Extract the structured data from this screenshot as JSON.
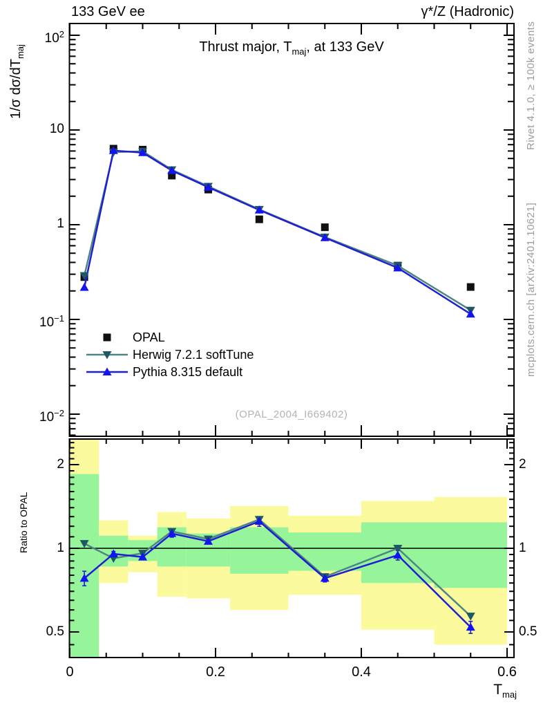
{
  "header": {
    "left": "133 GeV ee",
    "right": "γ*/Z (Hadronic)"
  },
  "title": {
    "pre": "Thrust major, T",
    "sub": "maj",
    "post": ", at 133 GeV"
  },
  "axes": {
    "y_main_label": {
      "pre": "1/σ  dσ/dT",
      "sub": "maj"
    },
    "ratio_label": "Ratio to OPAL",
    "x_label": {
      "pre": "T",
      "sub": "maj"
    }
  },
  "legend": [
    {
      "name": "OPAL"
    },
    {
      "name": "Herwig 7.2.1 softTune"
    },
    {
      "name": "Pythia 8.315 default"
    }
  ],
  "watermark": "(OPAL_2004_I669402)",
  "side_notes": {
    "top": "Rivet 4.1.0, ≥ 100k events",
    "bottom": "mcplots.cern.ch [arXiv:2401.10621]"
  },
  "chart_data": {
    "type": "line",
    "title": "Thrust major, T_maj, at 133 GeV",
    "xlabel": "T_maj",
    "ylabel": "1/σ dσ/dT_maj",
    "ratio_ylabel": "Ratio to OPAL",
    "x_axis": {
      "range": [
        0,
        0.609
      ],
      "major_ticks": [
        {
          "v": 0,
          "label": "0"
        },
        {
          "v": 0.2,
          "label": "0.2"
        },
        {
          "v": 0.4,
          "label": "0.4"
        },
        {
          "v": 0.6,
          "label": "0.6"
        }
      ],
      "minor_step": 0.05
    },
    "y_main_axis": {
      "scale": "log",
      "range": [
        0.0058,
        133
      ],
      "label_ticks": [
        {
          "v": 100,
          "base": "10",
          "sup": "2"
        },
        {
          "v": 10,
          "base": "10",
          "sup": ""
        },
        {
          "v": 1,
          "base": "1",
          "sup": ""
        },
        {
          "v": 0.1,
          "base": "10",
          "sup": "−1"
        },
        {
          "v": 0.01,
          "base": "10",
          "sup": "−2"
        }
      ]
    },
    "y_ratio_axis": {
      "scale": "log",
      "range": [
        0.405,
        2.47
      ],
      "label_ticks": [
        {
          "v": 2,
          "label": "2"
        },
        {
          "v": 1,
          "label": "1"
        },
        {
          "v": 0.5,
          "label": "0.5"
        }
      ],
      "minor_below_1": [
        0.45,
        0.55,
        0.6,
        0.65,
        0.7,
        0.75,
        0.8,
        0.85,
        0.9,
        0.95
      ],
      "minor_above_1": [
        1.1,
        1.2,
        1.3,
        1.4,
        1.5,
        1.6,
        1.7,
        1.8,
        1.9,
        2.1,
        2.2,
        2.3,
        2.4
      ]
    },
    "bin_edges": [
      0,
      0.04,
      0.08,
      0.12,
      0.16,
      0.22,
      0.3,
      0.4,
      0.5,
      0.6
    ],
    "x": [
      0.02,
      0.06,
      0.1,
      0.14,
      0.19,
      0.26,
      0.35,
      0.45,
      0.55
    ],
    "series": [
      {
        "name": "OPAL",
        "marker": "square",
        "color": "#111111",
        "values": [
          0.28,
          6.35,
          6.2,
          3.3,
          2.35,
          1.14,
          0.94,
          0.37,
          0.22
        ]
      },
      {
        "name": "Herwig 7.2.1 softTune",
        "marker": "triangle-down",
        "line_color": "#4d8585",
        "marker_color": "#1d5864",
        "values": [
          0.29,
          5.84,
          5.95,
          3.8,
          2.54,
          1.45,
          0.74,
          0.37,
          0.125
        ],
        "ratio": [
          1.04,
          0.92,
          0.96,
          1.15,
          1.08,
          1.27,
          0.79,
          1.0,
          0.57
        ]
      },
      {
        "name": "Pythia 8.315 default",
        "marker": "triangle-up",
        "line_color": "#1f1fd0",
        "marker_color": "#1414f0",
        "values": [
          0.218,
          6.06,
          5.77,
          3.73,
          2.49,
          1.43,
          0.73,
          0.35,
          0.114
        ],
        "ratio": [
          0.78,
          0.955,
          0.93,
          1.13,
          1.06,
          1.25,
          0.78,
          0.945,
          0.52
        ],
        "ratio_err": [
          0.06,
          0.02,
          0.02,
          0.03,
          0.02,
          0.04,
          0.03,
          0.04,
          0.05
        ]
      }
    ],
    "ratio_bands": [
      {
        "x0": 0.0,
        "x1": 0.04,
        "yellow": [
          0.405,
          2.47
        ],
        "green": [
          0.405,
          1.85
        ]
      },
      {
        "x0": 0.04,
        "x1": 0.08,
        "yellow": [
          0.75,
          1.26
        ],
        "green": [
          0.86,
          1.11
        ]
      },
      {
        "x0": 0.08,
        "x1": 0.12,
        "yellow": [
          0.82,
          1.11
        ],
        "green": [
          0.9,
          1.07
        ]
      },
      {
        "x0": 0.12,
        "x1": 0.16,
        "yellow": [
          0.67,
          1.35
        ],
        "green": [
          0.86,
          1.19
        ]
      },
      {
        "x0": 0.16,
        "x1": 0.22,
        "yellow": [
          0.66,
          1.28
        ],
        "green": [
          0.86,
          1.13
        ]
      },
      {
        "x0": 0.22,
        "x1": 0.3,
        "yellow": [
          0.6,
          1.42
        ],
        "green": [
          0.81,
          1.19
        ]
      },
      {
        "x0": 0.3,
        "x1": 0.4,
        "yellow": [
          0.68,
          1.31
        ],
        "green": [
          0.83,
          1.14
        ]
      },
      {
        "x0": 0.4,
        "x1": 0.5,
        "yellow": [
          0.51,
          1.48
        ],
        "green": [
          0.75,
          1.24
        ]
      },
      {
        "x0": 0.5,
        "x1": 0.6,
        "yellow": [
          0.45,
          1.53
        ],
        "green": [
          0.72,
          1.24
        ]
      }
    ],
    "colors": {
      "band_green": "#96f59b",
      "band_yellow": "#fbfb9d",
      "frame": "#000000",
      "ref_line": "#000000"
    },
    "legend_position": "left-middle",
    "grid": false
  }
}
